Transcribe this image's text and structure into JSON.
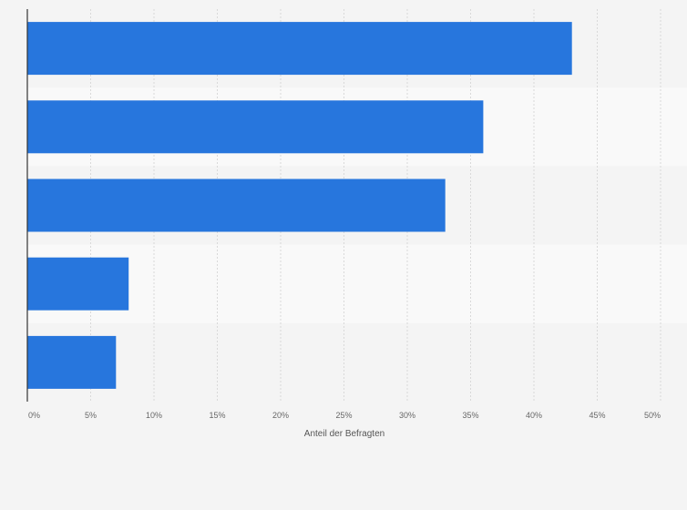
{
  "chart_data": {
    "type": "bar",
    "orientation": "horizontal",
    "categories": [
      "",
      "",
      "",
      "",
      ""
    ],
    "values": [
      43,
      36,
      33,
      8,
      7
    ],
    "xlabel": "Anteil der Befragten",
    "xlim": [
      0,
      50
    ],
    "ticks": [
      0,
      5,
      10,
      15,
      20,
      25,
      30,
      35,
      40,
      45,
      50
    ],
    "tick_labels": [
      "0%",
      "5%",
      "10%",
      "15%",
      "20%",
      "25%",
      "30%",
      "35%",
      "40%",
      "45%",
      "50%"
    ],
    "grid": true,
    "bar_color": "#2776dd",
    "band_colors": [
      "#f4f4f4",
      "#f9f9f9"
    ],
    "gridline_color": "#d9d9d9",
    "axis_color": "#333333",
    "tick_label_color": "#666666"
  }
}
